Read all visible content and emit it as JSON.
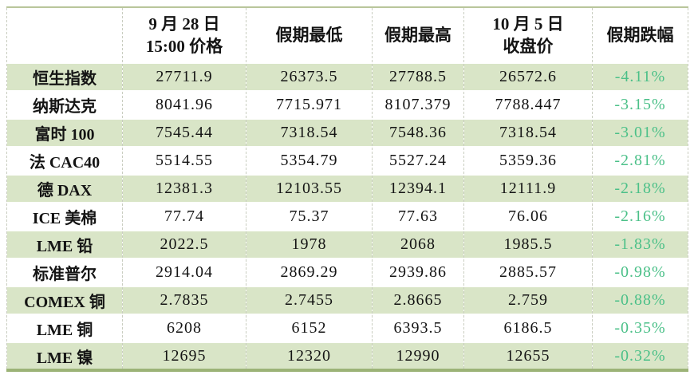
{
  "colors": {
    "alt_row_green": "#d9e5c7",
    "drop_percent_text": "#4bc088",
    "table_top_border": "#b9c69b",
    "table_bottom_border": "#9cb377",
    "cell_divider": "#c9cdc0",
    "text": "#141414"
  },
  "chart_data": {
    "type": "table",
    "header": {
      "col1": "",
      "col2_line1": "9 月 28 日",
      "col2_line2": "15:00 价格",
      "col3": "假期最低",
      "col4": "假期最高",
      "col5_line1": "10 月 5 日",
      "col5_line2": "收盘价",
      "col6": "假期跌幅"
    },
    "columns": [
      "",
      "9月28日 15:00价格",
      "假期最低",
      "假期最高",
      "10月5日 收盘价",
      "假期跌幅"
    ],
    "rows": [
      {
        "name": "恒生指数",
        "price_sep28": "27711.9",
        "holiday_low": "26373.5",
        "holiday_high": "27788.5",
        "close_oct5": "26572.6",
        "holiday_drop": "-4.11%"
      },
      {
        "name": "纳斯达克",
        "price_sep28": "8041.96",
        "holiday_low": "7715.971",
        "holiday_high": "8107.379",
        "close_oct5": "7788.447",
        "holiday_drop": "-3.15%"
      },
      {
        "name": "富时 100",
        "price_sep28": "7545.44",
        "holiday_low": "7318.54",
        "holiday_high": "7548.36",
        "close_oct5": "7318.54",
        "holiday_drop": "-3.01%"
      },
      {
        "name": "法 CAC40",
        "price_sep28": "5514.55",
        "holiday_low": "5354.79",
        "holiday_high": "5527.24",
        "close_oct5": "5359.36",
        "holiday_drop": "-2.81%"
      },
      {
        "name": "德 DAX",
        "price_sep28": "12381.3",
        "holiday_low": "12103.55",
        "holiday_high": "12394.1",
        "close_oct5": "12111.9",
        "holiday_drop": "-2.18%"
      },
      {
        "name": "ICE 美棉",
        "price_sep28": "77.74",
        "holiday_low": "75.37",
        "holiday_high": "77.63",
        "close_oct5": "76.06",
        "holiday_drop": "-2.16%"
      },
      {
        "name": "LME 铅",
        "price_sep28": "2022.5",
        "holiday_low": "1978",
        "holiday_high": "2068",
        "close_oct5": "1985.5",
        "holiday_drop": "-1.83%"
      },
      {
        "name": "标准普尔",
        "price_sep28": "2914.04",
        "holiday_low": "2869.29",
        "holiday_high": "2939.86",
        "close_oct5": "2885.57",
        "holiday_drop": "-0.98%"
      },
      {
        "name": "COMEX 铜",
        "price_sep28": "2.7835",
        "holiday_low": "2.7455",
        "holiday_high": "2.8665",
        "close_oct5": "2.759",
        "holiday_drop": "-0.88%"
      },
      {
        "name": "LME 铜",
        "price_sep28": "6208",
        "holiday_low": "6152",
        "holiday_high": "6393.5",
        "close_oct5": "6186.5",
        "holiday_drop": "-0.35%"
      },
      {
        "name": "LME 镍",
        "price_sep28": "12695",
        "holiday_low": "12320",
        "holiday_high": "12990",
        "close_oct5": "12655",
        "holiday_drop": "-0.32%"
      }
    ]
  }
}
